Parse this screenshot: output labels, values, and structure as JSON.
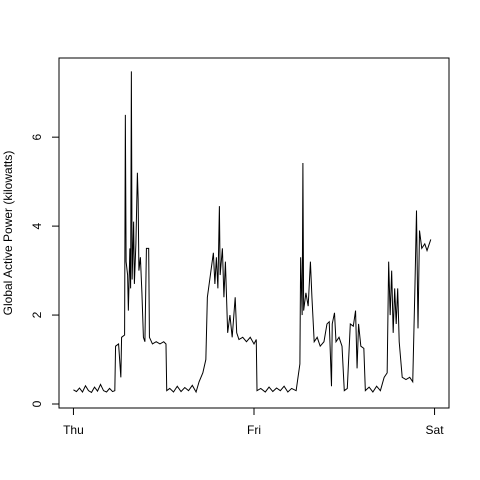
{
  "chart_data": {
    "type": "line",
    "y_label": "Global Active Power (kilowatts)",
    "x": [
      0,
      0.4,
      0.8,
      1.2,
      1.6,
      2.0,
      2.4,
      2.8,
      3.2,
      3.6,
      4.0,
      4.4,
      4.8,
      5.2,
      5.5,
      5.6,
      6.0,
      6.3,
      6.4,
      6.8,
      6.9,
      7.0,
      7.2,
      7.3,
      7.5,
      7.6,
      7.7,
      7.8,
      8.0,
      8.1,
      8.3,
      8.5,
      8.6,
      8.7,
      8.9,
      9.1,
      9.3,
      9.5,
      9.7,
      10.0,
      10.1,
      10.5,
      11.0,
      11.5,
      12.0,
      12.3,
      12.4,
      12.8,
      13.3,
      13.8,
      14.3,
      14.8,
      15.3,
      15.8,
      16.3,
      16.7,
      17.2,
      17.6,
      17.8,
      18.2,
      18.6,
      18.8,
      19.0,
      19.2,
      19.4,
      19.5,
      19.8,
      20.0,
      20.2,
      20.5,
      20.8,
      21.1,
      21.5,
      21.7,
      22.0,
      22.5,
      23.0,
      23.5,
      24.0,
      24.3,
      24.4,
      24.9,
      25.5,
      26.0,
      26.5,
      27.0,
      27.5,
      28.0,
      28.5,
      29.0,
      29.6,
      30.1,
      30.2,
      30.4,
      30.5,
      30.6,
      30.9,
      31.2,
      31.5,
      31.7,
      32.0,
      32.4,
      32.8,
      33.3,
      33.7,
      34.0,
      34.3,
      34.4,
      34.7,
      34.9,
      35.3,
      35.7,
      36.0,
      36.4,
      36.8,
      37.2,
      37.5,
      37.7,
      37.9,
      38.2,
      38.6,
      38.8,
      39.3,
      39.8,
      40.3,
      40.8,
      41.3,
      41.7,
      41.9,
      42.1,
      42.3,
      42.5,
      42.7,
      42.9,
      43.1,
      43.3,
      43.5,
      43.7,
      44.2,
      44.7,
      45.1,
      45.4,
      45.6,
      45.8,
      46.0,
      46.3,
      46.7,
      47.0,
      47.5
    ],
    "values": [
      0.32,
      0.28,
      0.36,
      0.27,
      0.41,
      0.3,
      0.26,
      0.38,
      0.29,
      0.44,
      0.3,
      0.27,
      0.35,
      0.28,
      0.3,
      1.3,
      1.35,
      0.6,
      1.5,
      1.55,
      6.5,
      3.2,
      2.9,
      2.1,
      3.5,
      2.6,
      7.48,
      2.8,
      4.1,
      2.7,
      3.6,
      5.2,
      4.6,
      3.0,
      3.3,
      2.5,
      1.5,
      1.4,
      3.5,
      3.5,
      1.5,
      1.35,
      1.4,
      1.35,
      1.4,
      1.35,
      0.3,
      0.35,
      0.27,
      0.4,
      0.28,
      0.37,
      0.3,
      0.42,
      0.27,
      0.5,
      0.7,
      1.0,
      2.4,
      2.9,
      3.4,
      2.7,
      3.3,
      2.6,
      4.45,
      2.9,
      3.5,
      2.4,
      3.2,
      1.6,
      2.0,
      1.5,
      2.4,
      1.6,
      1.45,
      1.5,
      1.4,
      1.5,
      1.35,
      1.45,
      0.3,
      0.35,
      0.27,
      0.38,
      0.28,
      0.36,
      0.3,
      0.4,
      0.27,
      0.35,
      0.3,
      0.9,
      3.3,
      2.0,
      5.42,
      2.1,
      2.5,
      2.2,
      3.2,
      2.4,
      1.4,
      1.5,
      1.3,
      1.4,
      1.8,
      1.85,
      0.4,
      1.8,
      2.05,
      1.4,
      1.5,
      1.3,
      0.3,
      0.35,
      1.8,
      1.75,
      2.1,
      0.8,
      1.8,
      1.3,
      1.25,
      0.3,
      0.38,
      0.27,
      0.4,
      0.3,
      0.6,
      0.7,
      3.2,
      2.0,
      3.0,
      1.6,
      2.6,
      1.8,
      2.6,
      1.4,
      1.0,
      0.6,
      0.55,
      0.6,
      0.5,
      2.7,
      4.35,
      1.7,
      3.9,
      3.5,
      3.6,
      3.45,
      3.7
    ],
    "color": "#000000",
    "xlim": [
      -1.92,
      49.92
    ],
    "xticks": [
      {
        "value": 0,
        "label": "Thu"
      },
      {
        "value": 24,
        "label": "Fri"
      },
      {
        "value": 48,
        "label": "Sat"
      }
    ],
    "ylim": [
      -0.09,
      7.78
    ],
    "yticks": [
      0,
      2,
      4,
      6
    ]
  }
}
